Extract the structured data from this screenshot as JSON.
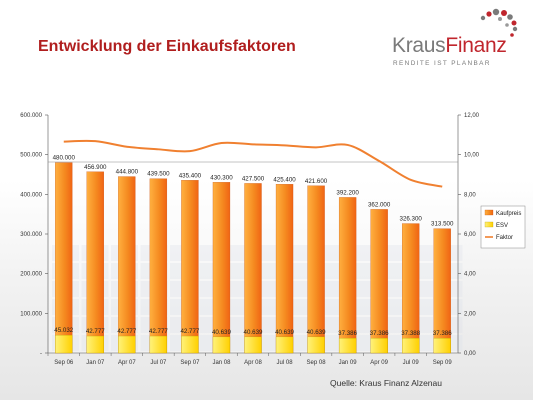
{
  "slide": {
    "title": "Entwicklung der Einkaufsfaktoren",
    "source": "Quelle: Kraus Finanz Alzenau"
  },
  "logo": {
    "name_part1": "Kraus",
    "name_part2": "Finanz",
    "tagline": "RENDITE IST PLANBAR",
    "colors": {
      "gray": "#7a7a7a",
      "red": "#c0262d"
    }
  },
  "colors": {
    "title": "#b01e1e",
    "bar_kaufpreis_light": "#ffb040",
    "bar_kaufpreis_dark": "#f06414",
    "bar_esv": "#ffd800",
    "line_faktor": "#f08030"
  },
  "chart_data": {
    "type": "bar",
    "categories": [
      "Sep 06",
      "Jan 07",
      "Apr 07",
      "Jul 07",
      "Sep 07",
      "Jan 08",
      "Apr 08",
      "Jul 08",
      "Sep 08",
      "Jan 09",
      "Apr 09",
      "Jul 09",
      "Sep 09"
    ],
    "series": [
      {
        "name": "Kaufpreis",
        "kind": "bar",
        "axis": "left",
        "values": [
          480000,
          456900,
          444800,
          439500,
          435400,
          430300,
          427500,
          425400,
          421600,
          392200,
          362000,
          326300,
          313500
        ],
        "labels": [
          "480.000",
          "456.900",
          "444.800",
          "439.500",
          "435.400",
          "430.300",
          "427.500",
          "425.400",
          "421.600",
          "392.200",
          "362.000",
          "326.300",
          "313.500"
        ]
      },
      {
        "name": "ESV",
        "kind": "bar",
        "axis": "left",
        "values": [
          45032,
          42777,
          42777,
          42777,
          42777,
          40639,
          40639,
          40639,
          40639,
          37386,
          37386,
          37388,
          37386
        ],
        "labels": [
          "45.032",
          "42.777",
          "42.777",
          "42.777",
          "42.777",
          "40.639",
          "40.639",
          "40.639",
          "40.639",
          "37.386",
          "37.386",
          "37.388",
          "37.386"
        ]
      },
      {
        "name": "Faktor",
        "kind": "line",
        "axis": "right",
        "values": [
          10.66,
          10.68,
          10.4,
          10.27,
          10.18,
          10.59,
          10.52,
          10.47,
          10.37,
          10.49,
          9.68,
          8.73,
          8.39
        ]
      }
    ],
    "y_left": {
      "min": 0,
      "max": 600000,
      "ticks": [
        0,
        100000,
        200000,
        300000,
        400000,
        500000,
        600000
      ],
      "tick_labels": [
        "-",
        "100.000",
        "200.000",
        "300.000",
        "400.000",
        "500.000",
        "600.000"
      ]
    },
    "y_right": {
      "min": 0,
      "max": 12,
      "ticks": [
        0,
        2,
        4,
        6,
        8,
        10,
        12
      ],
      "tick_labels": [
        "0,00",
        "2,00",
        "4,00",
        "6,00",
        "8,00",
        "10,00",
        "12,00"
      ]
    },
    "legend": {
      "position": "right",
      "entries": [
        "Kaufpreis",
        "ESV",
        "Faktor"
      ]
    },
    "grid": false
  }
}
